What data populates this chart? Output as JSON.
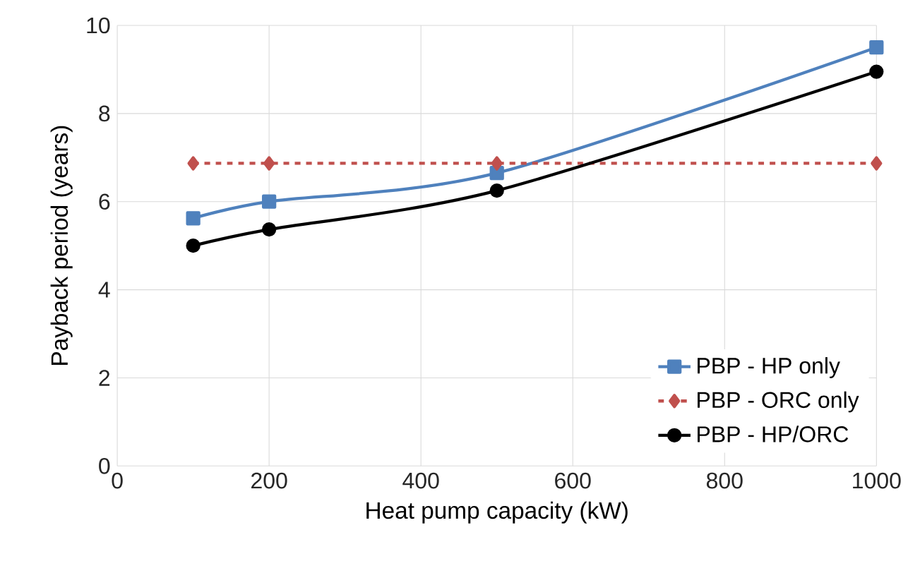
{
  "chart_data": {
    "type": "line",
    "xlabel": "Heat pump capacity (kW)",
    "ylabel": "Payback period (years)",
    "x": [
      100,
      200,
      500,
      1000
    ],
    "series": [
      {
        "name": "PBP - HP only",
        "color": "#4f81bd",
        "values": [
          5.62,
          6.0,
          6.65,
          9.5
        ],
        "marker": "square",
        "line_style": "solid"
      },
      {
        "name": "PBP - ORC only",
        "color": "#c0504d",
        "values": [
          6.87,
          6.87,
          6.87,
          6.87
        ],
        "marker": "diamond",
        "line_style": "dashed"
      },
      {
        "name": "PBP - HP/ORC",
        "color": "#000000",
        "values": [
          5.0,
          5.37,
          6.25,
          8.95
        ],
        "marker": "circle",
        "line_style": "solid"
      }
    ],
    "xlim": [
      0,
      1000
    ],
    "ylim": [
      0,
      10
    ],
    "xticks": [
      0,
      200,
      400,
      600,
      800,
      1000
    ],
    "yticks": [
      0,
      2,
      4,
      6,
      8,
      10
    ],
    "grid": true,
    "legend": "bottom right"
  }
}
